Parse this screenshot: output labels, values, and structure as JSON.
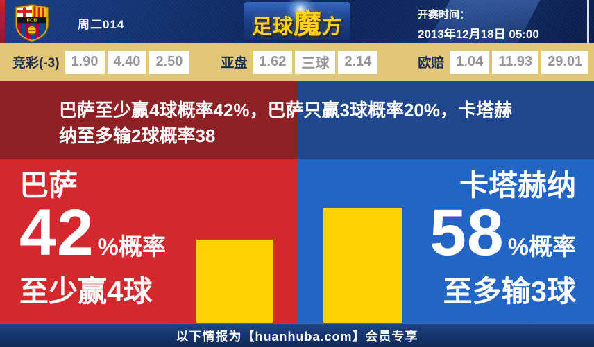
{
  "header": {
    "match_code": "周二014",
    "logo_parts": {
      "a": "足球",
      "b": "魔",
      "c": "方"
    },
    "kickoff_label": "开赛时间：",
    "kickoff_time": "2013年12月18日 05:00",
    "crest_initials": "FCB"
  },
  "odds_bar": {
    "groups": [
      {
        "label": "竞彩(-3)",
        "values": [
          "1.90",
          "4.40",
          "2.50"
        ]
      },
      {
        "label": "亚盘",
        "values": [
          "1.62",
          "三球",
          "2.14"
        ]
      },
      {
        "label": "欧赔",
        "values": [
          "1.04",
          "11.93",
          "29.01"
        ]
      }
    ]
  },
  "headline": "巴萨至少赢4球概率42%，巴萨只赢3球概率20%，卡塔赫纳至多输2球概率38",
  "left_panel": {
    "team": "巴萨",
    "percent": "42",
    "percent_suffix": "%概率",
    "outcome": "至少赢4球"
  },
  "right_panel": {
    "team": "卡塔赫纳",
    "percent": "58",
    "percent_suffix": "%概率",
    "outcome": "至多输3球"
  },
  "footer": {
    "text": "以下情报为【huanhuba.com】会员专享"
  },
  "colors": {
    "home_red": "#d4282e",
    "away_blue": "#2365c4",
    "bar_yellow": "#ffd303",
    "headline_red": "#8e2126",
    "headline_blue": "#20478c",
    "odds_bar_bg": "#e3c778",
    "header_navy": "#12306e",
    "footer_navy": "#16356d",
    "odds_value_gray": "#94969a"
  },
  "chart_data": {
    "type": "bar",
    "categories": [
      "巴萨",
      "卡塔赫纳"
    ],
    "values": [
      42,
      58
    ],
    "value_labels": [
      "42%概率 至少赢4球",
      "58%概率 至多输3球"
    ],
    "unit": "%",
    "title": "巴萨至少赢4球概率42%，巴萨只赢3球概率20%，卡塔赫纳至多输2球概率38",
    "xlabel": "",
    "ylabel": "概率",
    "ylim": [
      0,
      82
    ],
    "bar_color": "#ffd303",
    "grid": false,
    "legend": false
  }
}
